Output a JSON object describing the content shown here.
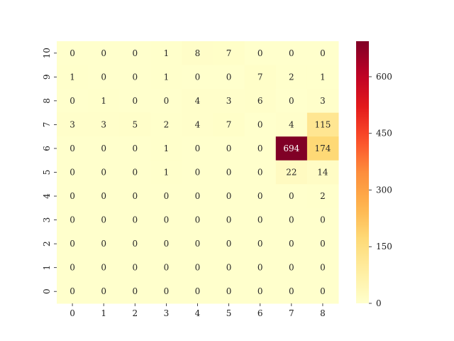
{
  "chart_data": {
    "type": "heatmap",
    "title": "",
    "xlabel": "",
    "ylabel": "",
    "x_categories": [
      "0",
      "1",
      "2",
      "3",
      "4",
      "5",
      "6",
      "7",
      "8"
    ],
    "y_categories_top_to_bottom": [
      "10",
      "9",
      "8",
      "7",
      "6",
      "5",
      "4",
      "3",
      "2",
      "1",
      "0"
    ],
    "values": [
      [
        0,
        0,
        0,
        1,
        8,
        7,
        0,
        0,
        0
      ],
      [
        1,
        0,
        0,
        1,
        0,
        0,
        7,
        2,
        1
      ],
      [
        0,
        1,
        0,
        0,
        4,
        3,
        6,
        0,
        3
      ],
      [
        3,
        3,
        5,
        2,
        4,
        7,
        0,
        4,
        115
      ],
      [
        0,
        0,
        0,
        1,
        0,
        0,
        0,
        694,
        174
      ],
      [
        0,
        0,
        0,
        1,
        0,
        0,
        0,
        22,
        14
      ],
      [
        0,
        0,
        0,
        0,
        0,
        0,
        0,
        0,
        2
      ],
      [
        0,
        0,
        0,
        0,
        0,
        0,
        0,
        0,
        0
      ],
      [
        0,
        0,
        0,
        0,
        0,
        0,
        0,
        0,
        0
      ],
      [
        0,
        0,
        0,
        0,
        0,
        0,
        0,
        0,
        0
      ],
      [
        0,
        0,
        0,
        0,
        0,
        0,
        0,
        0,
        0
      ]
    ],
    "value_range": [
      0,
      694
    ],
    "colormap": "YlOrRd",
    "colorbar": {
      "ticks": [
        0,
        150,
        300,
        450,
        600
      ],
      "tick_labels": [
        "0",
        "150",
        "300",
        "450",
        "600"
      ]
    },
    "annotations": true,
    "grid": false,
    "legend": "colorbar-right"
  }
}
